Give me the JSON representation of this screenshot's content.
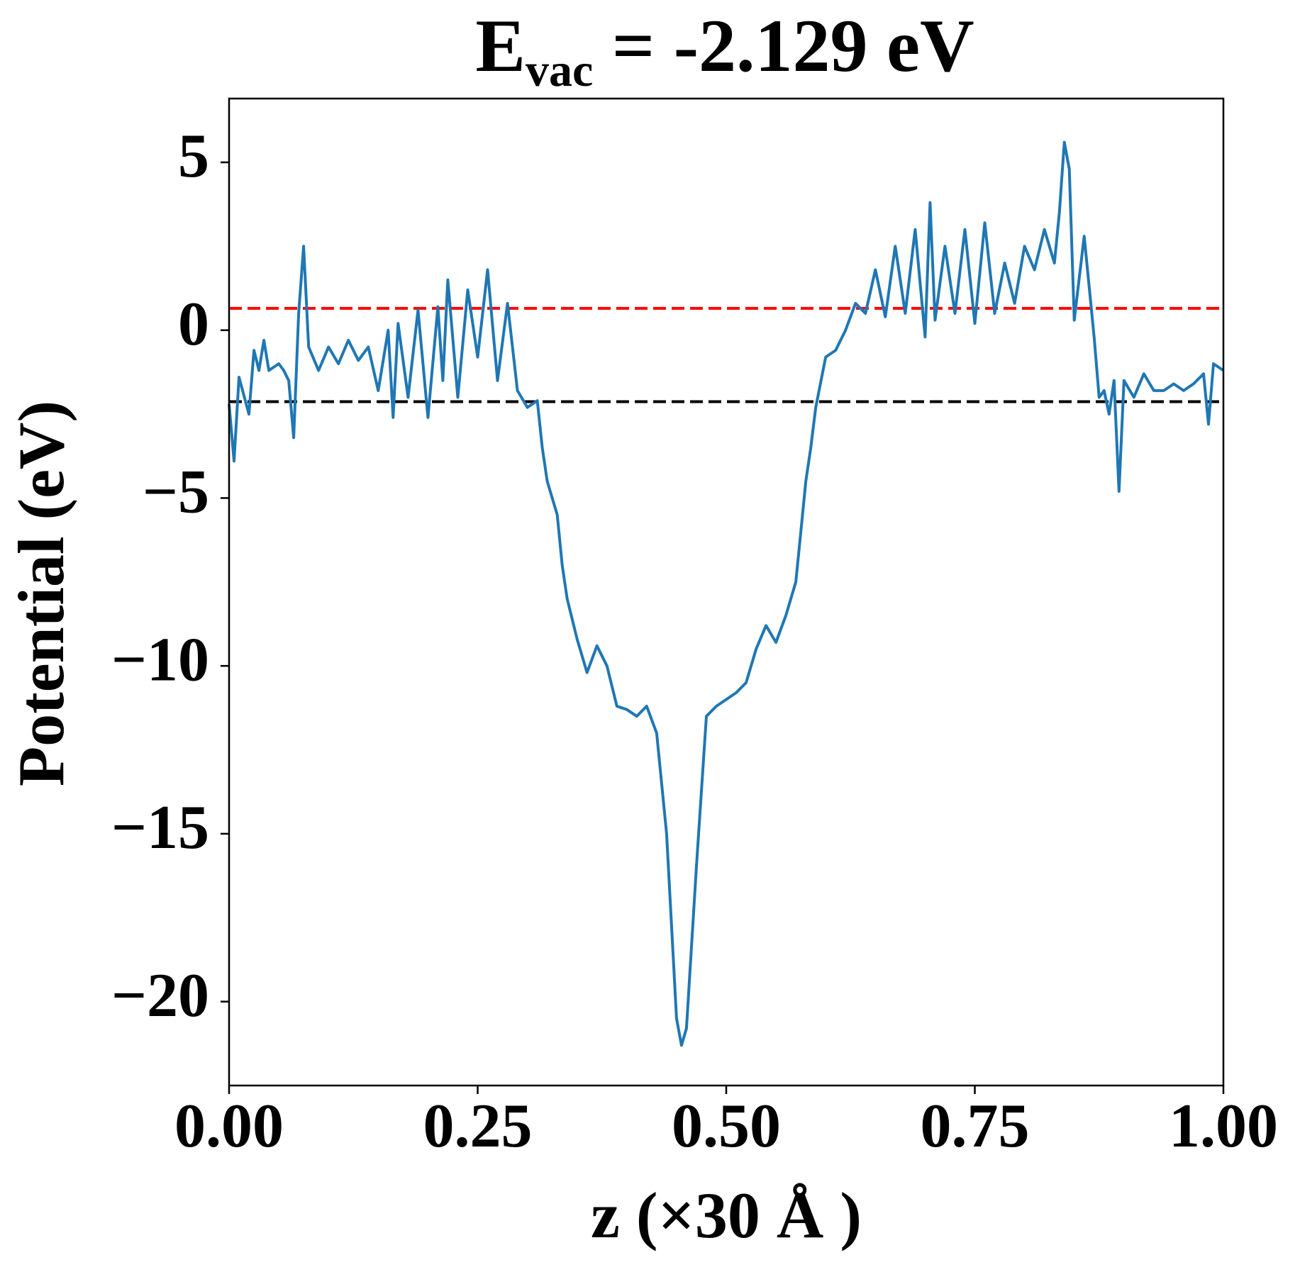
{
  "chart_data": {
    "type": "line",
    "title": {
      "main": "E",
      "sub": "vac",
      "rest": " = -2.129 eV"
    },
    "xlabel": "z (×30 Å )",
    "ylabel": "Potential (eV)",
    "xlim": [
      0,
      1
    ],
    "ylim": [
      -22.5,
      6.9
    ],
    "xticks": [
      {
        "value": 0,
        "label": "0.00"
      },
      {
        "value": 0.25,
        "label": "0.25"
      },
      {
        "value": 0.5,
        "label": "0.50"
      },
      {
        "value": 0.75,
        "label": "0.75"
      },
      {
        "value": 1,
        "label": "1.00"
      }
    ],
    "yticks": [
      {
        "value": -20,
        "label": "−20"
      },
      {
        "value": -15,
        "label": "−15"
      },
      {
        "value": -10,
        "label": "−10"
      },
      {
        "value": -5,
        "label": "−5"
      },
      0,
      5
    ],
    "hlines": [
      {
        "value": 0.65,
        "color": "#ff0000"
      },
      {
        "value": -2.129,
        "color": "#000000"
      }
    ],
    "series": [
      {
        "color": "#1f77b4",
        "x": [
          0,
          0.005,
          0.01,
          0.02,
          0.025,
          0.03,
          0.035,
          0.04,
          0.05,
          0.055,
          0.06,
          0.065,
          0.07,
          0.075,
          0.08,
          0.09,
          0.1,
          0.11,
          0.12,
          0.13,
          0.14,
          0.15,
          0.16,
          0.165,
          0.17,
          0.18,
          0.19,
          0.2,
          0.21,
          0.215,
          0.22,
          0.23,
          0.24,
          0.25,
          0.26,
          0.27,
          0.28,
          0.29,
          0.3,
          0.31,
          0.315,
          0.32,
          0.33,
          0.335,
          0.34,
          0.35,
          0.36,
          0.37,
          0.38,
          0.39,
          0.4,
          0.41,
          0.42,
          0.43,
          0.44,
          0.45,
          0.455,
          0.46,
          0.47,
          0.48,
          0.49,
          0.5,
          0.51,
          0.52,
          0.53,
          0.54,
          0.55,
          0.56,
          0.57,
          0.575,
          0.58,
          0.585,
          0.59,
          0.6,
          0.61,
          0.62,
          0.63,
          0.64,
          0.65,
          0.66,
          0.67,
          0.68,
          0.69,
          0.7,
          0.705,
          0.71,
          0.72,
          0.73,
          0.74,
          0.75,
          0.76,
          0.77,
          0.78,
          0.79,
          0.8,
          0.81,
          0.82,
          0.83,
          0.835,
          0.84,
          0.845,
          0.85,
          0.86,
          0.87,
          0.875,
          0.88,
          0.885,
          0.89,
          0.895,
          0.9,
          0.91,
          0.92,
          0.93,
          0.94,
          0.95,
          0.96,
          0.97,
          0.98,
          0.985,
          0.99,
          1
        ],
        "values": [
          -2.2,
          -3.9,
          -1.4,
          -2.5,
          -0.6,
          -1.2,
          -0.3,
          -1.2,
          -1.0,
          -1.2,
          -1.5,
          -3.2,
          0.5,
          2.5,
          -0.5,
          -1.2,
          -0.5,
          -1.0,
          -0.3,
          -0.9,
          -0.5,
          -1.8,
          0.0,
          -2.6,
          0.2,
          -2.0,
          0.6,
          -2.6,
          0.7,
          -1.5,
          1.5,
          -2.0,
          1.2,
          -0.8,
          1.8,
          -1.5,
          0.8,
          -1.8,
          -2.3,
          -2.1,
          -3.5,
          -4.5,
          -5.5,
          -7.0,
          -8.0,
          -9.2,
          -10.2,
          -9.4,
          -10.0,
          -11.2,
          -11.3,
          -11.5,
          -11.2,
          -12.0,
          -15.0,
          -20.5,
          -21.3,
          -20.8,
          -16.0,
          -11.5,
          -11.2,
          -11.0,
          -10.8,
          -10.5,
          -9.5,
          -8.8,
          -9.3,
          -8.5,
          -7.5,
          -6.0,
          -4.5,
          -3.5,
          -2.3,
          -0.8,
          -0.6,
          0.0,
          0.8,
          0.5,
          1.8,
          0.4,
          2.5,
          0.5,
          3.0,
          -0.2,
          3.8,
          0.3,
          2.5,
          0.5,
          3.0,
          0.2,
          3.2,
          0.5,
          2.0,
          0.8,
          2.5,
          1.8,
          3.0,
          2.0,
          3.5,
          5.6,
          4.8,
          0.3,
          2.8,
          -0.2,
          -2.0,
          -1.8,
          -2.5,
          -1.5,
          -4.8,
          -1.5,
          -2.0,
          -1.3,
          -1.8,
          -1.8,
          -1.6,
          -1.8,
          -1.6,
          -1.3,
          -2.8,
          -1.0,
          -1.2
        ]
      }
    ]
  }
}
